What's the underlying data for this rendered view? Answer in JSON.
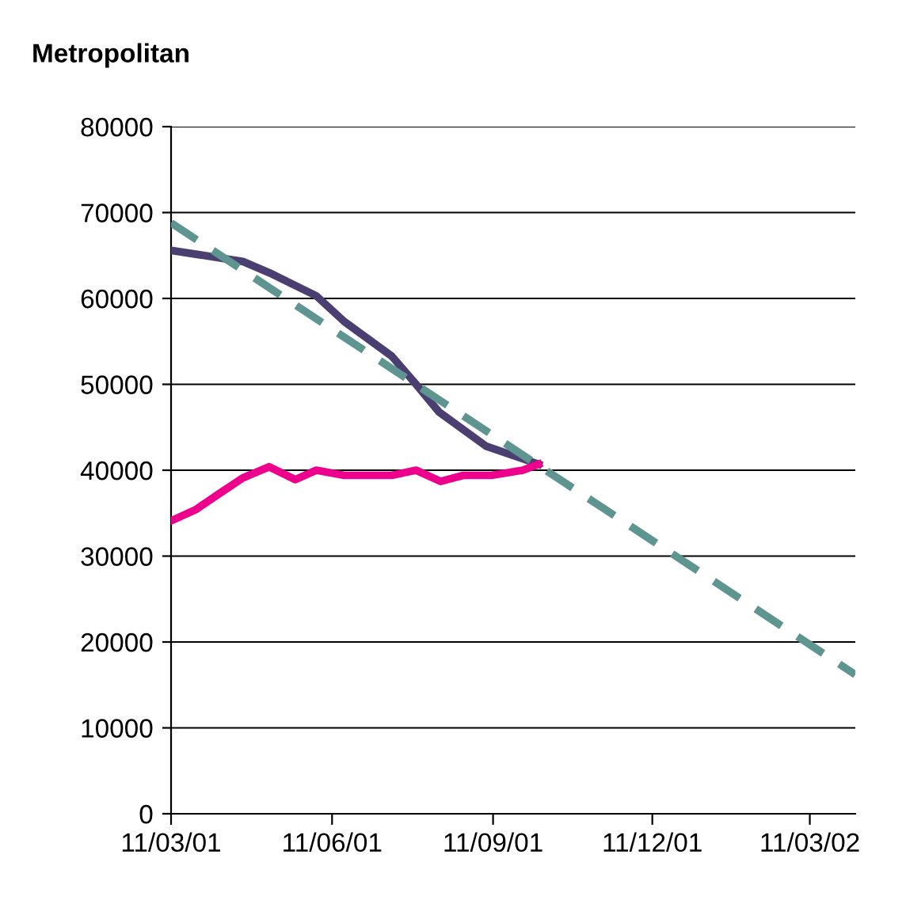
{
  "chart_data": {
    "type": "line",
    "title": "Metropolitan",
    "series": [
      {
        "color": "#4b3f72",
        "line_style": "solid",
        "x": [
          "2001-03-11",
          "2001-04-21",
          "2001-05-06",
          "2001-06-02",
          "2001-06-18",
          "2001-07-15",
          "2001-07-29",
          "2001-08-11",
          "2001-09-07",
          "2001-10-07"
        ],
        "values": [
          65600,
          64300,
          63000,
          60300,
          57300,
          53300,
          50000,
          46800,
          42800,
          40700
        ]
      },
      {
        "color": "#ec008c",
        "line_style": "solid",
        "x": [
          "2001-03-11",
          "2001-03-25",
          "2001-04-07",
          "2001-04-21",
          "2001-05-06",
          "2001-05-21",
          "2001-06-02",
          "2001-06-18",
          "2001-07-15",
          "2001-07-29",
          "2001-08-12",
          "2001-08-25",
          "2001-09-10",
          "2001-09-28",
          "2001-10-07"
        ],
        "values": [
          34100,
          35400,
          37200,
          39100,
          40400,
          38900,
          40000,
          39400,
          39400,
          40000,
          38700,
          39400,
          39400,
          40000,
          40700
        ]
      },
      {
        "color": "#5f9590",
        "line_style": "dashed",
        "x": [
          "2001-03-11",
          "2002-04-06"
        ],
        "values": [
          68800,
          16200
        ]
      }
    ],
    "xlim": [
      "2001-03-11",
      "2002-04-06"
    ],
    "xticks": [
      {
        "value": "2001-03-11",
        "label": "11/03/01"
      },
      {
        "value": "2001-06-11",
        "label": "11/06/01"
      },
      {
        "value": "2001-09-11",
        "label": "11/09/01"
      },
      {
        "value": "2001-12-11",
        "label": "11/12/01"
      },
      {
        "value": "2002-03-11",
        "label": "11/03/02"
      }
    ],
    "ylim": [
      0,
      80000
    ],
    "yticks": [
      0,
      10000,
      20000,
      30000,
      40000,
      50000,
      60000,
      70000,
      80000
    ],
    "grid": "y",
    "legend": false
  }
}
